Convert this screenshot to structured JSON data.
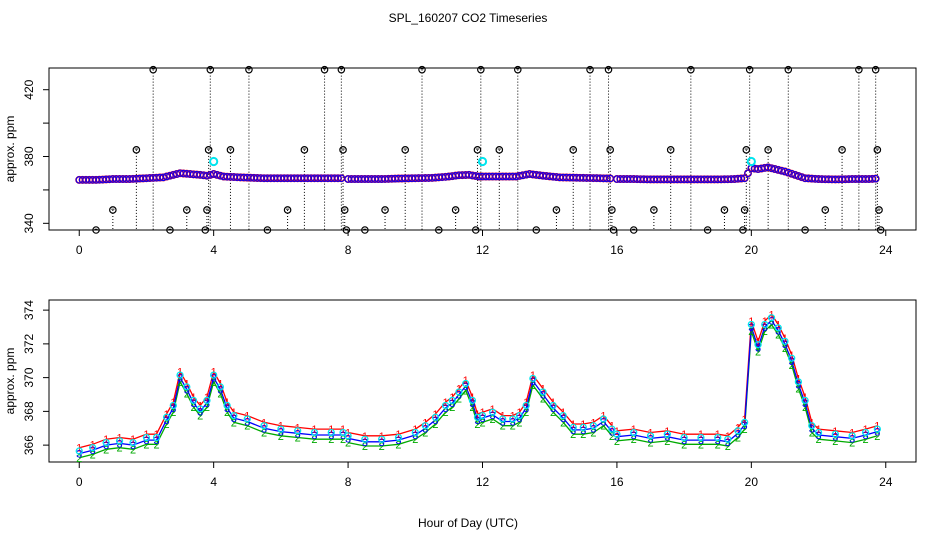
{
  "figure": {
    "title": "SPL_160207  CO2 Timeseries",
    "xlabel": "Hour of Day (UTC)"
  },
  "chart_data": [
    {
      "type": "scatter",
      "ylabel": "approx. ppm",
      "xlim": [
        -0.9,
        24.9
      ],
      "ylim": [
        336,
        433
      ],
      "xticks": [
        0,
        4,
        8,
        12,
        16,
        20,
        24
      ],
      "yticks": [
        340,
        360,
        380,
        400,
        420
      ],
      "yticklabels": [
        "340",
        "",
        "380",
        "",
        "420"
      ],
      "grid": false,
      "colors": {
        "baseline": "#0000ff",
        "baseline_edge": "#ff0000",
        "outlier": "#000000",
        "highlight": "#00e5ee",
        "drop_line": "#000000"
      },
      "baseline_segments": [
        {
          "x": [
            0.0,
            0.5,
            1.0,
            1.5,
            2.0,
            2.5,
            2.8,
            3.0,
            3.3,
            3.6,
            3.8,
            4.0,
            4.3,
            4.8,
            5.5,
            6.5,
            7.5,
            7.85
          ],
          "y": [
            366,
            366,
            366.5,
            366.5,
            367,
            367.5,
            369,
            370,
            369.5,
            369,
            368.5,
            369.5,
            368,
            367.5,
            367,
            367,
            367,
            367
          ]
        },
        {
          "x": [
            8.0,
            8.5,
            9.0,
            9.5,
            10.0,
            10.5,
            11.0,
            11.3,
            11.6,
            11.9,
            12.0,
            12.5,
            13.0,
            13.4,
            13.8,
            14.3,
            15.0,
            15.5,
            15.85
          ],
          "y": [
            366.5,
            366.5,
            366.5,
            366.8,
            367,
            367.2,
            368,
            368.8,
            369,
            368,
            368,
            368,
            368,
            369.5,
            368.5,
            367.5,
            367.2,
            367,
            366.8
          ]
        },
        {
          "x": [
            16.0,
            16.5,
            17.0,
            17.5,
            18.0,
            18.5,
            19.0,
            19.5,
            19.8,
            20.0,
            20.2,
            20.5,
            20.8,
            21.0,
            21.3,
            21.6,
            22.0,
            22.5,
            23.0,
            23.5,
            23.75
          ],
          "y": [
            366.5,
            366.5,
            366.3,
            366.3,
            366.3,
            366.3,
            366.3,
            366.5,
            367,
            373,
            372.5,
            373.5,
            372,
            371,
            369,
            367,
            366.5,
            366.3,
            366.5,
            366.5,
            366.8
          ]
        }
      ],
      "outliers": [
        {
          "x": 0.5,
          "y": 336
        },
        {
          "x": 1.0,
          "y": 348
        },
        {
          "x": 1.7,
          "y": 384
        },
        {
          "x": 2.2,
          "y": 432
        },
        {
          "x": 2.7,
          "y": 336
        },
        {
          "x": 3.2,
          "y": 348
        },
        {
          "x": 3.75,
          "y": 336
        },
        {
          "x": 3.8,
          "y": 348
        },
        {
          "x": 3.85,
          "y": 384
        },
        {
          "x": 3.9,
          "y": 432
        },
        {
          "x": 4.5,
          "y": 384
        },
        {
          "x": 5.05,
          "y": 432
        },
        {
          "x": 5.6,
          "y": 336
        },
        {
          "x": 6.2,
          "y": 348
        },
        {
          "x": 6.7,
          "y": 384
        },
        {
          "x": 7.3,
          "y": 432
        },
        {
          "x": 7.8,
          "y": 432
        },
        {
          "x": 7.85,
          "y": 384
        },
        {
          "x": 7.9,
          "y": 348
        },
        {
          "x": 7.95,
          "y": 336
        },
        {
          "x": 8.5,
          "y": 336
        },
        {
          "x": 9.1,
          "y": 348
        },
        {
          "x": 9.7,
          "y": 384
        },
        {
          "x": 10.2,
          "y": 432
        },
        {
          "x": 10.7,
          "y": 336
        },
        {
          "x": 11.2,
          "y": 348
        },
        {
          "x": 11.8,
          "y": 336
        },
        {
          "x": 11.85,
          "y": 384
        },
        {
          "x": 11.95,
          "y": 432
        },
        {
          "x": 12.5,
          "y": 384
        },
        {
          "x": 13.05,
          "y": 432
        },
        {
          "x": 13.6,
          "y": 336
        },
        {
          "x": 14.2,
          "y": 348
        },
        {
          "x": 14.7,
          "y": 384
        },
        {
          "x": 15.2,
          "y": 432
        },
        {
          "x": 15.75,
          "y": 432
        },
        {
          "x": 15.8,
          "y": 384
        },
        {
          "x": 15.85,
          "y": 348
        },
        {
          "x": 15.9,
          "y": 336
        },
        {
          "x": 16.5,
          "y": 336
        },
        {
          "x": 17.1,
          "y": 348
        },
        {
          "x": 17.6,
          "y": 384
        },
        {
          "x": 18.2,
          "y": 432
        },
        {
          "x": 18.7,
          "y": 336
        },
        {
          "x": 19.2,
          "y": 348
        },
        {
          "x": 19.75,
          "y": 336
        },
        {
          "x": 19.8,
          "y": 348
        },
        {
          "x": 19.85,
          "y": 384
        },
        {
          "x": 19.95,
          "y": 432
        },
        {
          "x": 20.5,
          "y": 384
        },
        {
          "x": 21.1,
          "y": 432
        },
        {
          "x": 21.6,
          "y": 336
        },
        {
          "x": 22.2,
          "y": 348
        },
        {
          "x": 22.7,
          "y": 384
        },
        {
          "x": 23.2,
          "y": 432
        },
        {
          "x": 23.7,
          "y": 432
        },
        {
          "x": 23.75,
          "y": 384
        },
        {
          "x": 23.8,
          "y": 348
        },
        {
          "x": 23.85,
          "y": 336
        }
      ],
      "highlighted": [
        {
          "x": 4.0,
          "y": 377
        },
        {
          "x": 12.0,
          "y": 377
        },
        {
          "x": 20.0,
          "y": 377
        }
      ]
    },
    {
      "type": "line",
      "ylabel": "approx. ppm",
      "xlim": [
        -0.9,
        24.9
      ],
      "ylim": [
        365,
        374.6
      ],
      "xticks": [
        0,
        4,
        8,
        12,
        16,
        20,
        24
      ],
      "yticks": [
        366,
        368,
        370,
        372,
        374
      ],
      "grid": false,
      "gap_after_hours": [
        7.85,
        15.85
      ],
      "series": [
        {
          "marker": "1",
          "color": "#ff0000",
          "offset": 0.35,
          "x": [
            0.0,
            0.4,
            0.8,
            1.2,
            1.6,
            2.0,
            2.3,
            2.6,
            2.8,
            3.0,
            3.2,
            3.4,
            3.6,
            3.8,
            4.0,
            4.2,
            4.4,
            4.6,
            5.0,
            5.5,
            6.0,
            6.5,
            7.0,
            7.5,
            7.85,
            8.0,
            8.5,
            9.0,
            9.5,
            10.0,
            10.3,
            10.6,
            10.9,
            11.1,
            11.3,
            11.5,
            11.7,
            11.85,
            12.0,
            12.3,
            12.6,
            12.9,
            13.1,
            13.3,
            13.5,
            13.8,
            14.1,
            14.4,
            14.7,
            15.0,
            15.3,
            15.6,
            15.85,
            16.0,
            16.5,
            17.0,
            17.5,
            18.0,
            18.5,
            19.0,
            19.3,
            19.6,
            19.8,
            20.0,
            20.2,
            20.4,
            20.6,
            20.8,
            21.0,
            21.2,
            21.4,
            21.6,
            21.8,
            22.0,
            22.5,
            23.0,
            23.4,
            23.75
          ],
          "y": [
            365.5,
            365.7,
            366.0,
            366.1,
            366.0,
            366.3,
            366.3,
            367.5,
            368.2,
            370.0,
            369.3,
            368.5,
            368.0,
            368.5,
            370.0,
            369.3,
            368.2,
            367.6,
            367.4,
            367.0,
            366.8,
            366.7,
            366.6,
            366.6,
            366.6,
            366.4,
            366.2,
            366.2,
            366.3,
            366.6,
            367.0,
            367.5,
            368.2,
            368.5,
            369.0,
            369.5,
            368.5,
            367.5,
            367.6,
            367.8,
            367.4,
            367.4,
            367.6,
            368.2,
            369.8,
            369.0,
            368.2,
            367.6,
            366.9,
            366.9,
            367.0,
            367.4,
            366.8,
            366.5,
            366.6,
            366.4,
            366.5,
            366.3,
            366.3,
            366.3,
            366.2,
            366.7,
            367.2,
            373.0,
            371.8,
            373.0,
            373.4,
            372.8,
            372.0,
            371.0,
            369.6,
            368.5,
            367.0,
            366.6,
            366.5,
            366.4,
            366.6,
            366.8
          ]
        },
        {
          "marker": "2",
          "color": "#00aa00",
          "offset": -0.25,
          "x": [
            0.0,
            0.4,
            0.8,
            1.2,
            1.6,
            2.0,
            2.3,
            2.6,
            2.8,
            3.0,
            3.2,
            3.4,
            3.6,
            3.8,
            4.0,
            4.2,
            4.4,
            4.6,
            5.0,
            5.5,
            6.0,
            6.5,
            7.0,
            7.5,
            7.85,
            8.0,
            8.5,
            9.0,
            9.5,
            10.0,
            10.3,
            10.6,
            10.9,
            11.1,
            11.3,
            11.5,
            11.7,
            11.85,
            12.0,
            12.3,
            12.6,
            12.9,
            13.1,
            13.3,
            13.5,
            13.8,
            14.1,
            14.4,
            14.7,
            15.0,
            15.3,
            15.6,
            15.85,
            16.0,
            16.5,
            17.0,
            17.5,
            18.0,
            18.5,
            19.0,
            19.3,
            19.6,
            19.8,
            20.0,
            20.2,
            20.4,
            20.6,
            20.8,
            21.0,
            21.2,
            21.4,
            21.6,
            21.8,
            22.0,
            22.5,
            23.0,
            23.4,
            23.75
          ],
          "y": [
            365.5,
            365.7,
            366.0,
            366.1,
            366.0,
            366.3,
            366.3,
            367.5,
            368.2,
            370.0,
            369.3,
            368.5,
            368.0,
            368.5,
            370.0,
            369.3,
            368.2,
            367.6,
            367.4,
            367.0,
            366.8,
            366.7,
            366.6,
            366.6,
            366.6,
            366.4,
            366.2,
            366.2,
            366.3,
            366.6,
            367.0,
            367.5,
            368.2,
            368.5,
            369.0,
            369.5,
            368.5,
            367.5,
            367.6,
            367.8,
            367.4,
            367.4,
            367.6,
            368.2,
            369.8,
            369.0,
            368.2,
            367.6,
            366.9,
            366.9,
            367.0,
            367.4,
            366.8,
            366.5,
            366.6,
            366.4,
            366.5,
            366.3,
            366.3,
            366.3,
            366.2,
            366.7,
            367.2,
            373.0,
            371.8,
            373.0,
            373.4,
            372.8,
            372.0,
            371.0,
            369.6,
            368.5,
            367.0,
            366.6,
            366.5,
            366.4,
            366.6,
            366.8
          ]
        },
        {
          "marker": "3",
          "color": "#0000ff",
          "offset": 0.0,
          "x": [
            0.0,
            0.4,
            0.8,
            1.2,
            1.6,
            2.0,
            2.3,
            2.6,
            2.8,
            3.0,
            3.2,
            3.4,
            3.6,
            3.8,
            4.0,
            4.2,
            4.4,
            4.6,
            5.0,
            5.5,
            6.0,
            6.5,
            7.0,
            7.5,
            7.85,
            8.0,
            8.5,
            9.0,
            9.5,
            10.0,
            10.3,
            10.6,
            10.9,
            11.1,
            11.3,
            11.5,
            11.7,
            11.85,
            12.0,
            12.3,
            12.6,
            12.9,
            13.1,
            13.3,
            13.5,
            13.8,
            14.1,
            14.4,
            14.7,
            15.0,
            15.3,
            15.6,
            15.85,
            16.0,
            16.5,
            17.0,
            17.5,
            18.0,
            18.5,
            19.0,
            19.3,
            19.6,
            19.8,
            20.0,
            20.2,
            20.4,
            20.6,
            20.8,
            21.0,
            21.2,
            21.4,
            21.6,
            21.8,
            22.0,
            22.5,
            23.0,
            23.4,
            23.75
          ],
          "y": [
            365.5,
            365.7,
            366.0,
            366.1,
            366.0,
            366.3,
            366.3,
            367.5,
            368.2,
            370.0,
            369.3,
            368.5,
            368.0,
            368.5,
            370.0,
            369.3,
            368.2,
            367.6,
            367.4,
            367.0,
            366.8,
            366.7,
            366.6,
            366.6,
            366.6,
            366.4,
            366.2,
            366.2,
            366.3,
            366.6,
            367.0,
            367.5,
            368.2,
            368.5,
            369.0,
            369.5,
            368.5,
            367.5,
            367.6,
            367.8,
            367.4,
            367.4,
            367.6,
            368.2,
            369.8,
            369.0,
            368.2,
            367.6,
            366.9,
            366.9,
            367.0,
            367.4,
            366.8,
            366.5,
            366.6,
            366.4,
            366.5,
            366.3,
            366.3,
            366.3,
            366.2,
            366.7,
            367.2,
            373.0,
            371.8,
            373.0,
            373.4,
            372.8,
            372.0,
            371.0,
            369.6,
            368.5,
            367.0,
            366.6,
            366.5,
            366.4,
            366.6,
            366.8
          ]
        }
      ],
      "mean_markers": {
        "color": "#00e5ee",
        "marker": "circle"
      }
    }
  ]
}
